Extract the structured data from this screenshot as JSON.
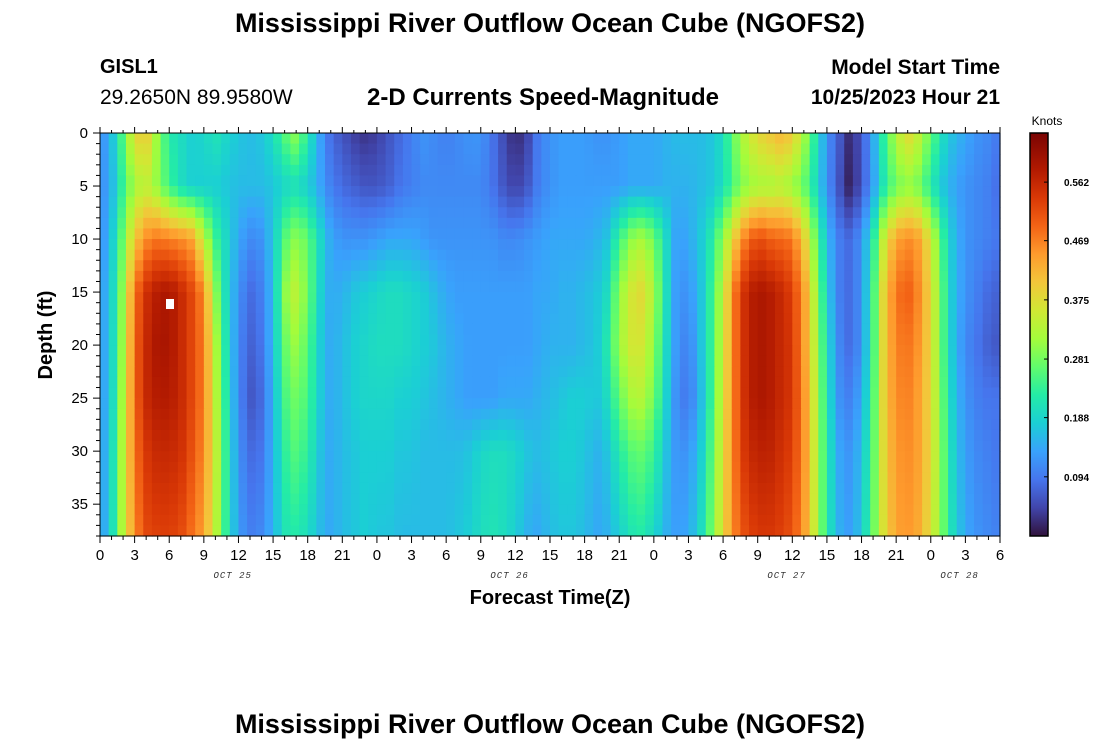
{
  "header": {
    "title": "Mississippi River Outflow Ocean Cube (NGOFS2)",
    "station": "GISL1",
    "coords": "29.2650N  89.9580W",
    "subtitle": "2-D Currents Speed-Magnitude",
    "model_start_label": "Model Start Time",
    "model_start_value": "10/25/2023 Hour 21"
  },
  "footer": {
    "title": "Mississippi River Outflow Ocean Cube (NGOFS2)"
  },
  "chart_data": {
    "type": "heatmap",
    "title": "2-D Currents Speed-Magnitude",
    "xlabel": "Forecast Time(Z)",
    "ylabel": "Depth (ft)",
    "xlim_hours": [
      0,
      78
    ],
    "ylim": [
      0,
      38
    ],
    "x_ticks": [
      "0",
      "3",
      "6",
      "9",
      "12",
      "15",
      "18",
      "21",
      "0",
      "3",
      "6",
      "9",
      "12",
      "15",
      "18",
      "21",
      "0",
      "3",
      "6",
      "9",
      "12",
      "15",
      "18",
      "21",
      "0",
      "3",
      "6"
    ],
    "y_ticks": [
      "0",
      "5",
      "10",
      "15",
      "20",
      "25",
      "30",
      "35"
    ],
    "date_labels": [
      {
        "hour": 11.5,
        "label": "OCT 25"
      },
      {
        "hour": 35.5,
        "label": "OCT 26"
      },
      {
        "hour": 59.5,
        "label": "OCT 27"
      },
      {
        "hour": 74.5,
        "label": "OCT 28"
      }
    ],
    "colorbar": {
      "unit": "Knots",
      "min": 0.0,
      "max": 0.64,
      "ticks": [
        "0.094",
        "0.188",
        "0.281",
        "0.375",
        "0.469",
        "0.562"
      ]
    },
    "current_speed_knots": {
      "depths_ft": [
        0,
        5,
        10,
        15,
        20,
        25,
        30,
        38
      ],
      "hours": [
        0,
        1,
        2,
        3,
        4,
        5,
        6,
        7,
        8,
        9,
        10,
        11,
        12,
        13,
        14,
        15,
        16,
        17,
        18,
        19,
        20,
        21,
        22,
        23,
        24,
        25,
        26,
        27,
        28,
        29,
        30,
        31,
        32,
        33,
        34,
        35,
        36,
        37,
        38,
        39,
        40,
        41,
        42,
        43,
        44,
        45,
        46,
        47,
        48,
        49,
        50,
        51,
        52,
        53,
        54,
        55,
        56,
        57,
        58,
        59,
        60,
        61,
        62,
        63,
        64,
        65,
        66,
        67,
        68,
        69,
        70,
        71,
        72,
        73,
        74,
        75,
        76,
        77,
        78
      ],
      "values": [
        [
          0.11,
          0.16,
          0.26,
          0.38,
          0.4,
          0.3,
          0.22,
          0.2,
          0.18,
          0.19,
          0.21,
          0.19,
          0.17,
          0.16,
          0.17,
          0.2,
          0.26,
          0.3,
          0.22,
          0.14,
          0.08,
          0.06,
          0.04,
          0.03,
          0.04,
          0.06,
          0.08,
          0.1,
          0.12,
          0.11,
          0.1,
          0.11,
          0.12,
          0.12,
          0.09,
          0.05,
          0.02,
          0.04,
          0.1,
          0.12,
          0.13,
          0.13,
          0.13,
          0.12,
          0.12,
          0.13,
          0.14,
          0.14,
          0.14,
          0.15,
          0.16,
          0.16,
          0.16,
          0.17,
          0.2,
          0.28,
          0.34,
          0.38,
          0.4,
          0.42,
          0.4,
          0.32,
          0.22,
          0.12,
          0.07,
          0.02,
          0.06,
          0.14,
          0.24,
          0.33,
          0.38,
          0.34,
          0.27,
          0.2,
          0.16,
          0.14,
          0.12,
          0.11,
          0.09
        ],
        [
          0.11,
          0.15,
          0.24,
          0.32,
          0.34,
          0.3,
          0.24,
          0.2,
          0.18,
          0.18,
          0.18,
          0.17,
          0.16,
          0.16,
          0.16,
          0.17,
          0.19,
          0.2,
          0.18,
          0.14,
          0.1,
          0.08,
          0.07,
          0.06,
          0.06,
          0.07,
          0.09,
          0.1,
          0.11,
          0.11,
          0.11,
          0.11,
          0.11,
          0.11,
          0.09,
          0.06,
          0.04,
          0.06,
          0.1,
          0.12,
          0.13,
          0.13,
          0.13,
          0.13,
          0.13,
          0.13,
          0.14,
          0.14,
          0.14,
          0.15,
          0.15,
          0.15,
          0.16,
          0.17,
          0.2,
          0.26,
          0.3,
          0.32,
          0.32,
          0.33,
          0.31,
          0.27,
          0.2,
          0.12,
          0.06,
          0.01,
          0.06,
          0.13,
          0.22,
          0.28,
          0.3,
          0.28,
          0.22,
          0.17,
          0.14,
          0.12,
          0.11,
          0.1,
          0.08
        ],
        [
          0.11,
          0.17,
          0.28,
          0.4,
          0.46,
          0.48,
          0.47,
          0.46,
          0.44,
          0.34,
          0.24,
          0.19,
          0.14,
          0.11,
          0.12,
          0.17,
          0.26,
          0.3,
          0.27,
          0.2,
          0.14,
          0.12,
          0.12,
          0.12,
          0.13,
          0.14,
          0.14,
          0.14,
          0.13,
          0.12,
          0.12,
          0.12,
          0.12,
          0.12,
          0.12,
          0.11,
          0.11,
          0.12,
          0.13,
          0.14,
          0.14,
          0.14,
          0.14,
          0.15,
          0.17,
          0.24,
          0.3,
          0.32,
          0.28,
          0.2,
          0.13,
          0.14,
          0.17,
          0.22,
          0.3,
          0.4,
          0.48,
          0.52,
          0.5,
          0.49,
          0.48,
          0.4,
          0.28,
          0.16,
          0.1,
          0.08,
          0.12,
          0.22,
          0.36,
          0.44,
          0.46,
          0.44,
          0.36,
          0.24,
          0.16,
          0.12,
          0.11,
          0.1,
          0.09
        ],
        [
          0.12,
          0.18,
          0.31,
          0.48,
          0.55,
          0.58,
          0.59,
          0.56,
          0.52,
          0.46,
          0.3,
          0.19,
          0.12,
          0.08,
          0.1,
          0.16,
          0.3,
          0.34,
          0.28,
          0.19,
          0.14,
          0.15,
          0.17,
          0.18,
          0.19,
          0.2,
          0.2,
          0.19,
          0.18,
          0.16,
          0.14,
          0.13,
          0.13,
          0.13,
          0.13,
          0.13,
          0.13,
          0.13,
          0.14,
          0.14,
          0.15,
          0.15,
          0.16,
          0.17,
          0.2,
          0.3,
          0.36,
          0.38,
          0.32,
          0.21,
          0.12,
          0.12,
          0.16,
          0.24,
          0.34,
          0.48,
          0.56,
          0.59,
          0.58,
          0.56,
          0.53,
          0.45,
          0.32,
          0.18,
          0.1,
          0.08,
          0.12,
          0.24,
          0.4,
          0.48,
          0.5,
          0.46,
          0.38,
          0.26,
          0.16,
          0.12,
          0.1,
          0.08,
          0.07
        ],
        [
          0.12,
          0.18,
          0.32,
          0.49,
          0.56,
          0.59,
          0.59,
          0.56,
          0.52,
          0.47,
          0.33,
          0.2,
          0.11,
          0.07,
          0.09,
          0.16,
          0.27,
          0.31,
          0.26,
          0.18,
          0.14,
          0.16,
          0.18,
          0.19,
          0.2,
          0.2,
          0.2,
          0.19,
          0.18,
          0.17,
          0.15,
          0.14,
          0.13,
          0.13,
          0.13,
          0.13,
          0.13,
          0.13,
          0.14,
          0.15,
          0.15,
          0.15,
          0.16,
          0.17,
          0.22,
          0.31,
          0.36,
          0.36,
          0.3,
          0.2,
          0.12,
          0.1,
          0.16,
          0.24,
          0.35,
          0.48,
          0.56,
          0.59,
          0.58,
          0.56,
          0.54,
          0.45,
          0.33,
          0.2,
          0.11,
          0.08,
          0.12,
          0.24,
          0.4,
          0.47,
          0.48,
          0.45,
          0.38,
          0.26,
          0.16,
          0.11,
          0.09,
          0.07,
          0.06
        ],
        [
          0.12,
          0.18,
          0.33,
          0.49,
          0.56,
          0.58,
          0.58,
          0.56,
          0.52,
          0.47,
          0.34,
          0.21,
          0.11,
          0.06,
          0.08,
          0.15,
          0.25,
          0.28,
          0.25,
          0.18,
          0.14,
          0.16,
          0.18,
          0.19,
          0.19,
          0.19,
          0.18,
          0.18,
          0.17,
          0.16,
          0.15,
          0.14,
          0.13,
          0.13,
          0.13,
          0.14,
          0.14,
          0.14,
          0.15,
          0.16,
          0.17,
          0.18,
          0.18,
          0.17,
          0.2,
          0.27,
          0.32,
          0.33,
          0.28,
          0.19,
          0.11,
          0.09,
          0.15,
          0.24,
          0.36,
          0.48,
          0.56,
          0.59,
          0.58,
          0.56,
          0.54,
          0.46,
          0.34,
          0.21,
          0.12,
          0.1,
          0.14,
          0.25,
          0.4,
          0.46,
          0.47,
          0.44,
          0.38,
          0.27,
          0.17,
          0.12,
          0.1,
          0.09,
          0.09
        ],
        [
          0.12,
          0.19,
          0.34,
          0.48,
          0.54,
          0.56,
          0.56,
          0.55,
          0.51,
          0.46,
          0.35,
          0.22,
          0.12,
          0.08,
          0.09,
          0.15,
          0.23,
          0.26,
          0.23,
          0.17,
          0.14,
          0.16,
          0.17,
          0.18,
          0.18,
          0.18,
          0.17,
          0.17,
          0.16,
          0.16,
          0.16,
          0.16,
          0.17,
          0.19,
          0.2,
          0.2,
          0.19,
          0.17,
          0.16,
          0.17,
          0.18,
          0.18,
          0.17,
          0.15,
          0.17,
          0.22,
          0.26,
          0.27,
          0.24,
          0.17,
          0.12,
          0.12,
          0.17,
          0.26,
          0.37,
          0.48,
          0.55,
          0.57,
          0.57,
          0.55,
          0.53,
          0.46,
          0.34,
          0.22,
          0.14,
          0.12,
          0.16,
          0.26,
          0.39,
          0.45,
          0.46,
          0.44,
          0.38,
          0.28,
          0.18,
          0.13,
          0.11,
          0.1,
          0.09
        ],
        [
          0.12,
          0.19,
          0.34,
          0.46,
          0.52,
          0.53,
          0.53,
          0.52,
          0.48,
          0.44,
          0.34,
          0.22,
          0.13,
          0.1,
          0.11,
          0.15,
          0.21,
          0.22,
          0.2,
          0.16,
          0.14,
          0.16,
          0.17,
          0.18,
          0.17,
          0.17,
          0.16,
          0.16,
          0.16,
          0.16,
          0.16,
          0.17,
          0.18,
          0.2,
          0.21,
          0.2,
          0.18,
          0.15,
          0.14,
          0.16,
          0.17,
          0.17,
          0.16,
          0.14,
          0.15,
          0.18,
          0.21,
          0.22,
          0.19,
          0.15,
          0.13,
          0.14,
          0.19,
          0.28,
          0.38,
          0.47,
          0.52,
          0.54,
          0.54,
          0.53,
          0.51,
          0.45,
          0.34,
          0.22,
          0.15,
          0.13,
          0.17,
          0.27,
          0.38,
          0.44,
          0.45,
          0.43,
          0.37,
          0.28,
          0.19,
          0.14,
          0.12,
          0.11,
          0.1
        ]
      ]
    }
  }
}
